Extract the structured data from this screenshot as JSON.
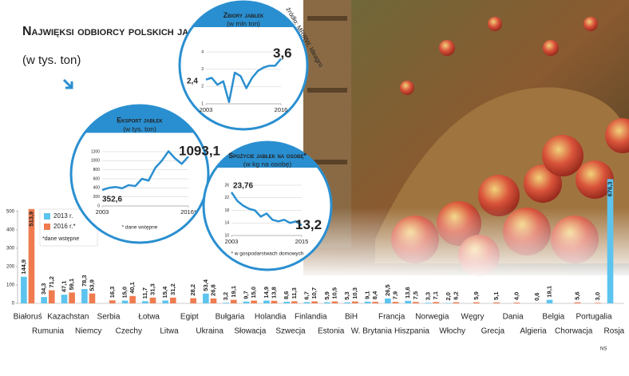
{
  "chart_data": [
    {
      "type": "bar",
      "title": "Najwięksi odbiorcy polskich jabłek",
      "subtitle": "(w tys. ton)",
      "note": "*dane wstępne",
      "source": "źródło: MRiRW, Ideagro",
      "credit": "NS",
      "categories": [
        "Białoruś",
        "Rumunia",
        "Kazachstan",
        "Niemcy",
        "Serbia",
        "Czechy",
        "Łotwa",
        "Litwa",
        "Egipt",
        "Ukraina",
        "Bułgaria",
        "Słowacja",
        "Holandia",
        "Szwecja",
        "Finlandia",
        "Estonia",
        "BiH",
        "W. Brytania",
        "Francja",
        "Hiszpania",
        "Norwegia",
        "Włochy",
        "Węgry",
        "Grecja",
        "Dania",
        "Algieria",
        "Belgia",
        "Chorwacja",
        "Portugalia",
        "Rosja"
      ],
      "series": [
        {
          "name": "2013 r.",
          "color": "#5cc4ee",
          "values": [
            144.9,
            34.3,
            47.1,
            78.3,
            null,
            15.0,
            11.7,
            15.4,
            null,
            53.4,
            3.2,
            9.7,
            14.9,
            8.6,
            6.7,
            5.9,
            5.3,
            9.1,
            26.5,
            13.6,
            3.3,
            2.0,
            null,
            null,
            null,
            null,
            19.1,
            null,
            null,
            676.3
          ],
          "value_labels": [
            "144,9",
            "34,3",
            "47,1",
            "78,3",
            null,
            "15,0",
            "11,7",
            "15,4",
            null,
            "53,4",
            "3,2",
            "9,7",
            "14,9",
            "8,6",
            "6,7",
            "5,9",
            "5,3",
            "9,1",
            "26,5",
            "13,6",
            "3,3",
            "2,0",
            null,
            null,
            null,
            null,
            "19,1",
            null,
            null,
            "676,3"
          ]
        },
        {
          "name": "2016 r.*",
          "color": "#ef7b4f",
          "values": [
            513.9,
            71.2,
            59.1,
            53.9,
            16.3,
            40.1,
            31.3,
            31.2,
            28.2,
            26.8,
            19.1,
            15.0,
            13.8,
            11.3,
            10.7,
            10.5,
            10.3,
            8.4,
            7.9,
            7.5,
            7.1,
            6.2,
            5.9,
            5.1,
            4.0,
            0.6,
            null,
            5.6,
            3.0,
            null
          ],
          "value_labels": [
            "513,9",
            "71,2",
            "59,1",
            "53,9",
            "16,3",
            "40,1",
            "31,3",
            "31,2",
            "28,2",
            "26,8",
            "19,1",
            "15,0",
            "13,8",
            "11,3",
            "10,7",
            "10,5",
            "10,3",
            "8,4",
            "7,9",
            "7,5",
            "7,1",
            "6,2",
            "5,9",
            "5,1",
            "4,0",
            "0,6",
            null,
            "5,6",
            "3,0",
            null
          ]
        }
      ],
      "ylim": [
        0,
        500
      ],
      "yticks": [
        0,
        100,
        200,
        300,
        400,
        500
      ]
    },
    {
      "type": "line",
      "title": "Zbiory jabłek",
      "subtitle": "(w mln ton)",
      "x": [
        2003,
        2004,
        2005,
        2006,
        2007,
        2008,
        2009,
        2010,
        2011,
        2012,
        2013,
        2014,
        2015,
        2016
      ],
      "series": [
        {
          "name": "Zbiory",
          "color": "#2a8fd0",
          "values": [
            2.4,
            2.5,
            2.1,
            2.3,
            1.1,
            2.8,
            2.6,
            1.9,
            2.5,
            2.9,
            3.1,
            3.2,
            3.2,
            3.6
          ],
          "value_labels": [
            "2,4",
            null,
            null,
            null,
            null,
            null,
            null,
            null,
            null,
            null,
            null,
            null,
            null,
            "3,6"
          ]
        }
      ],
      "xlim": [
        2003,
        2016
      ],
      "xticks": [
        2003,
        2016
      ],
      "ylim": [
        1,
        4
      ],
      "yticks": [
        1,
        2,
        3,
        4
      ]
    },
    {
      "type": "line",
      "title": "Eksport jabłek",
      "subtitle": "(w tys. ton)",
      "note": "* dane wstępne",
      "x": [
        2003,
        2004,
        2005,
        2006,
        2007,
        2008,
        2009,
        2010,
        2011,
        2012,
        2013,
        2014,
        2015,
        2016
      ],
      "series": [
        {
          "name": "Eksport",
          "color": "#2a8fd0",
          "values": [
            352.6,
            400,
            420,
            390,
            460,
            440,
            600,
            560,
            840,
            1000,
            1210,
            1050,
            930,
            1093.1
          ],
          "value_labels": [
            "352,6",
            null,
            null,
            null,
            null,
            null,
            null,
            null,
            null,
            null,
            null,
            null,
            null,
            "1093,1"
          ]
        }
      ],
      "xlim": [
        2003,
        2016
      ],
      "xticks": [
        2003,
        {
          "value": 2016,
          "label": "2016*"
        }
      ],
      "ylim": [
        0,
        1200
      ],
      "yticks": [
        0,
        200,
        400,
        600,
        800,
        1000,
        1200
      ]
    },
    {
      "type": "line",
      "title": "Spożycie jabłek na osobę*",
      "subtitle": "(w kg na osobę)",
      "note": "* w gospodarstwach domowych",
      "x": [
        2003,
        2004,
        2005,
        2006,
        2007,
        2008,
        2009,
        2010,
        2011,
        2012,
        2013,
        2014,
        2015
      ],
      "series": [
        {
          "name": "Spożycie",
          "color": "#2a8fd0",
          "values": [
            23.76,
            21,
            19.5,
            18.5,
            18,
            16,
            17,
            15,
            14.5,
            15,
            14,
            14.5,
            13.2
          ],
          "value_labels": [
            "23,76",
            null,
            null,
            null,
            null,
            null,
            null,
            null,
            null,
            null,
            null,
            null,
            "13,2"
          ]
        }
      ],
      "xlim": [
        2003,
        2015
      ],
      "xticks": [
        2003,
        2015
      ],
      "ylim": [
        10,
        26
      ],
      "yticks": [
        10,
        14,
        18,
        22,
        26
      ]
    }
  ]
}
